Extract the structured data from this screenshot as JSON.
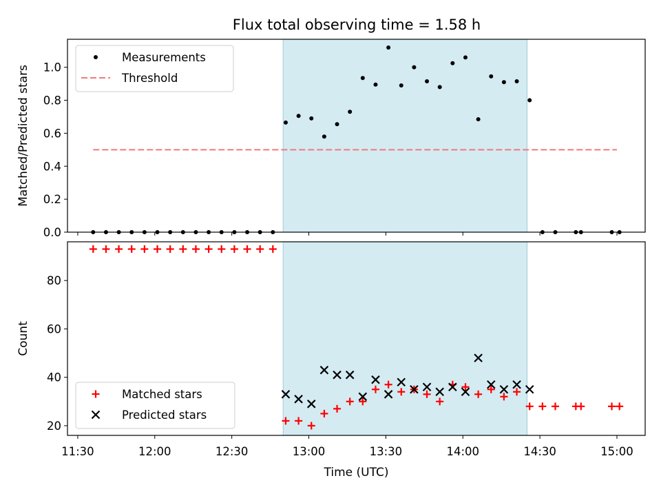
{
  "title": "Flux total observing time = 1.58 h",
  "chart_data": [
    {
      "type": "scatter",
      "ylabel": "Matched/Predicted stars",
      "xlabel": "",
      "ylim": [
        0,
        1.17
      ],
      "yticks": [
        "0.0",
        "0.2",
        "0.4",
        "0.6",
        "0.8",
        "1.0"
      ],
      "ytick_values": [
        0,
        0.2,
        0.4,
        0.6,
        0.8,
        1.0
      ],
      "x_axis": "time (UTC) shared with lower panel",
      "grid": false,
      "legend_placement": "top-left",
      "shaded_interval": [
        "12:50",
        "14:25"
      ],
      "series": [
        {
          "name": "Measurements",
          "marker": "dot",
          "color": "#000000",
          "x": [
            "11:36",
            "11:41",
            "11:46",
            "11:51",
            "11:56",
            "12:01",
            "12:06",
            "12:11",
            "12:16",
            "12:21",
            "12:26",
            "12:31",
            "12:36",
            "12:41",
            "12:46",
            "12:51",
            "12:56",
            "13:01",
            "13:06",
            "13:11",
            "13:16",
            "13:21",
            "13:26",
            "13:31",
            "13:36",
            "13:41",
            "13:46",
            "13:51",
            "13:56",
            "14:01",
            "14:06",
            "14:11",
            "14:16",
            "14:21",
            "14:26",
            "14:31",
            "14:36",
            "14:44",
            "14:46",
            "14:58",
            "15:01"
          ],
          "y": [
            0,
            0,
            0,
            0,
            0,
            0,
            0,
            0,
            0,
            0,
            0,
            0,
            0,
            0,
            0,
            0.665,
            0.705,
            0.69,
            0.58,
            0.655,
            0.73,
            0.935,
            0.895,
            1.12,
            0.89,
            1.0,
            0.915,
            0.88,
            1.025,
            1.06,
            0.685,
            0.945,
            0.91,
            0.915,
            0.8,
            0,
            0,
            0,
            0,
            0,
            0
          ]
        },
        {
          "name": "Threshold",
          "style": "dashed",
          "color": "#f07a7a",
          "x": [
            "11:36",
            "15:00"
          ],
          "y": [
            0.5,
            0.5
          ]
        }
      ]
    },
    {
      "type": "scatter",
      "ylabel": "Count",
      "xlabel": "Time (UTC)",
      "ylim": [
        16,
        96
      ],
      "yticks": [
        "20",
        "40",
        "60",
        "80"
      ],
      "ytick_values": [
        20,
        40,
        60,
        80
      ],
      "xlim": [
        "11:26",
        "15:11"
      ],
      "xticks": [
        "11:30",
        "12:00",
        "12:30",
        "13:00",
        "13:30",
        "14:00",
        "14:30",
        "15:00"
      ],
      "grid": false,
      "legend_placement": "bottom-left",
      "shaded_interval": [
        "12:50",
        "14:25"
      ],
      "series": [
        {
          "name": "Matched stars",
          "marker": "plus",
          "color": "#ff0000",
          "x": [
            "11:36",
            "11:41",
            "11:46",
            "11:51",
            "11:56",
            "12:01",
            "12:06",
            "12:11",
            "12:16",
            "12:21",
            "12:26",
            "12:31",
            "12:36",
            "12:41",
            "12:46",
            "12:51",
            "12:56",
            "13:01",
            "13:06",
            "13:11",
            "13:16",
            "13:21",
            "13:26",
            "13:31",
            "13:36",
            "13:41",
            "13:46",
            "13:51",
            "13:56",
            "14:01",
            "14:06",
            "14:11",
            "14:16",
            "14:21",
            "14:26",
            "14:31",
            "14:36",
            "14:44",
            "14:46",
            "14:58",
            "15:01"
          ],
          "y": [
            93,
            93,
            93,
            93,
            93,
            93,
            93,
            93,
            93,
            93,
            93,
            93,
            93,
            93,
            93,
            22,
            22,
            20,
            25,
            27,
            30,
            30,
            35,
            37,
            34,
            35,
            33,
            30,
            37,
            36,
            33,
            35,
            32,
            34,
            28,
            28,
            28,
            28,
            28,
            28,
            28
          ]
        },
        {
          "name": "Predicted stars",
          "marker": "x",
          "color": "#000000",
          "x": [
            "12:51",
            "12:56",
            "13:01",
            "13:06",
            "13:11",
            "13:16",
            "13:21",
            "13:26",
            "13:31",
            "13:36",
            "13:41",
            "13:46",
            "13:51",
            "13:56",
            "14:01",
            "14:06",
            "14:11",
            "14:16",
            "14:21",
            "14:26"
          ],
          "y": [
            33,
            31,
            29,
            43,
            41,
            41,
            32,
            39,
            33,
            38,
            35,
            36,
            34,
            36,
            34,
            48,
            37,
            35,
            37,
            35
          ]
        }
      ]
    }
  ],
  "colors": {
    "shade": "#add8e6",
    "threshold": "#f07a7a",
    "matched": "#ff0000",
    "predicted": "#000000"
  }
}
